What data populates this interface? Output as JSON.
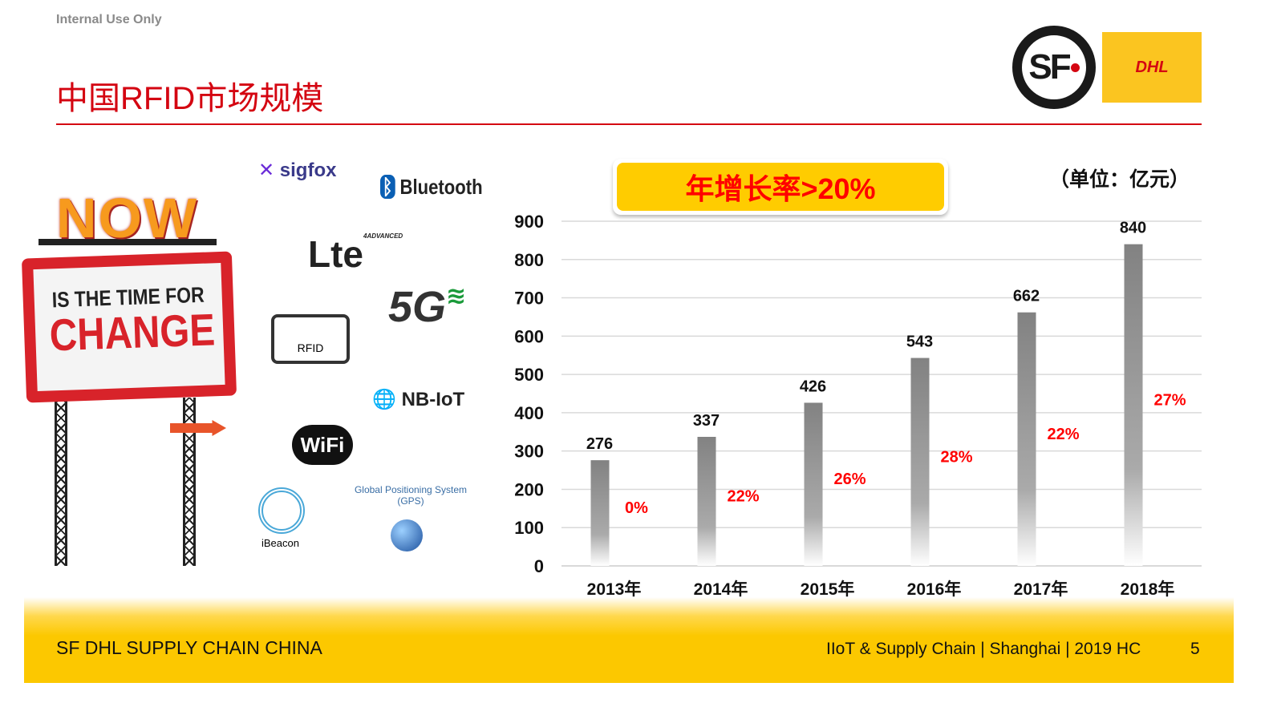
{
  "header": {
    "internal": "Internal Use Only",
    "title": "中国RFID市场规模",
    "logos": {
      "sf": "SF",
      "dhl": "DHL"
    }
  },
  "left_panel": {
    "sign": {
      "now": "NOW",
      "line1": "IS THE TIME FOR",
      "line2": "CHANGE"
    },
    "tech_logos": [
      "sigfox",
      "Bluetooth",
      "Lte",
      "4ADVANCED",
      "5G",
      "RFID",
      "NB-IoT",
      "WiFi",
      "iBeacon",
      "Global Positioning System (GPS)"
    ]
  },
  "chart_data": {
    "type": "bar",
    "categories": [
      "2013年",
      "2014年",
      "2015年",
      "2016年",
      "2017年",
      "2018年"
    ],
    "values": [
      276,
      337,
      426,
      543,
      662,
      840
    ],
    "growth_labels": [
      "0%",
      "22%",
      "26%",
      "28%",
      "22%",
      "27%"
    ],
    "ylim": [
      0,
      900
    ],
    "yticks": [
      0,
      100,
      200,
      300,
      400,
      500,
      600,
      700,
      800,
      900
    ],
    "grid": true,
    "unit_label": "（单位：亿元）",
    "callout": "年增长率>20%",
    "colors": {
      "bar": "#888888",
      "growth": "#ff0000",
      "callout_bg": "#ffcc00"
    }
  },
  "footer": {
    "left": "SF DHL SUPPLY CHAIN CHINA",
    "right": "IIoT & Supply Chain | Shanghai | 2019 HC",
    "page": "5"
  }
}
